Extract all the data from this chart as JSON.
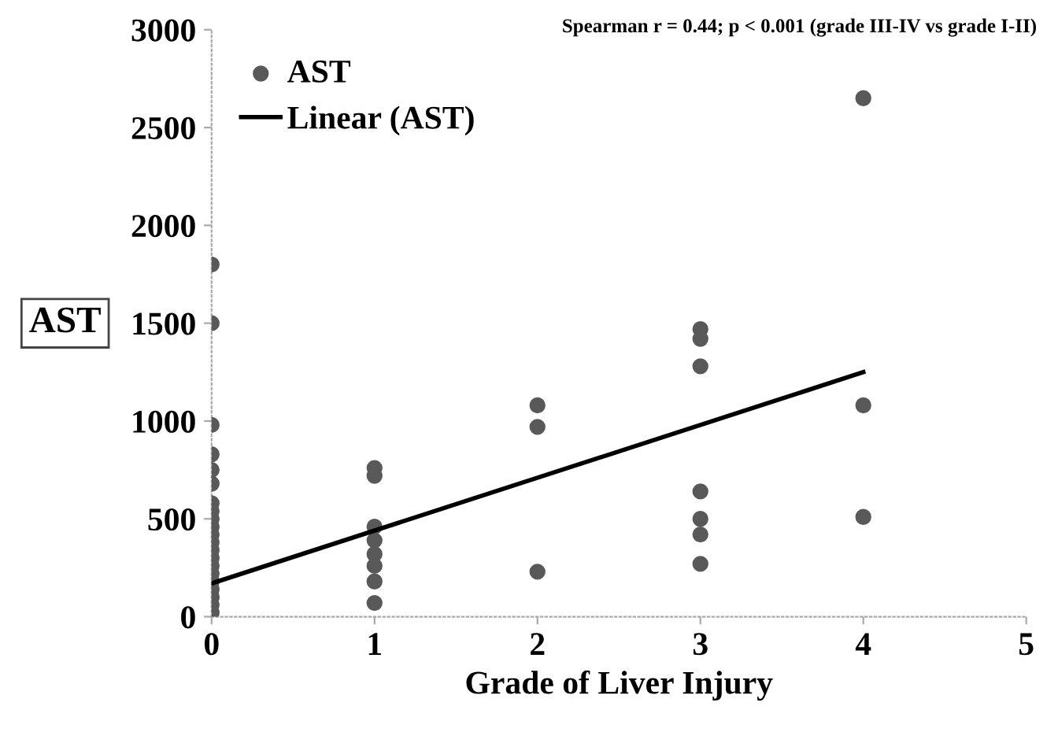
{
  "chart_data": {
    "type": "scatter",
    "xlabel": "Grade of Liver Injury",
    "ylabel": "AST",
    "annotations": [
      "Spearman r = 0.44; p < 0.001 (grade III-IV vs grade I-II)"
    ],
    "xlim": [
      0,
      5
    ],
    "xticks": [
      0,
      1,
      2,
      3,
      4,
      5
    ],
    "ylim": [
      0,
      3000
    ],
    "yticks": [
      0,
      500,
      1000,
      1500,
      2000,
      2500,
      3000
    ],
    "grid": false,
    "legend": "top left",
    "marker": "circle",
    "series": [
      {
        "name": "AST",
        "color": "#595959",
        "x": [
          0,
          0,
          0,
          0,
          0,
          0,
          0,
          0,
          0,
          0,
          0,
          0,
          0,
          0,
          0,
          0,
          0,
          0,
          0,
          0,
          0,
          1,
          1,
          1,
          1,
          1,
          1,
          1,
          1,
          2,
          2,
          2,
          3,
          3,
          3,
          3,
          3,
          3,
          3,
          4,
          4,
          4
        ],
        "values": [
          1800,
          1500,
          980,
          830,
          750,
          680,
          580,
          540,
          500,
          460,
          420,
          380,
          340,
          300,
          260,
          220,
          180,
          140,
          100,
          60,
          20,
          760,
          720,
          460,
          390,
          320,
          260,
          180,
          70,
          1080,
          970,
          230,
          1470,
          1420,
          1280,
          640,
          500,
          420,
          270,
          2650,
          1080,
          510
        ]
      },
      {
        "name": "Linear (AST)",
        "type": "line",
        "color": "#000000",
        "line_style": "solid",
        "marker": "none",
        "x": [
          0,
          4
        ],
        "values": [
          170,
          1250
        ]
      }
    ]
  }
}
